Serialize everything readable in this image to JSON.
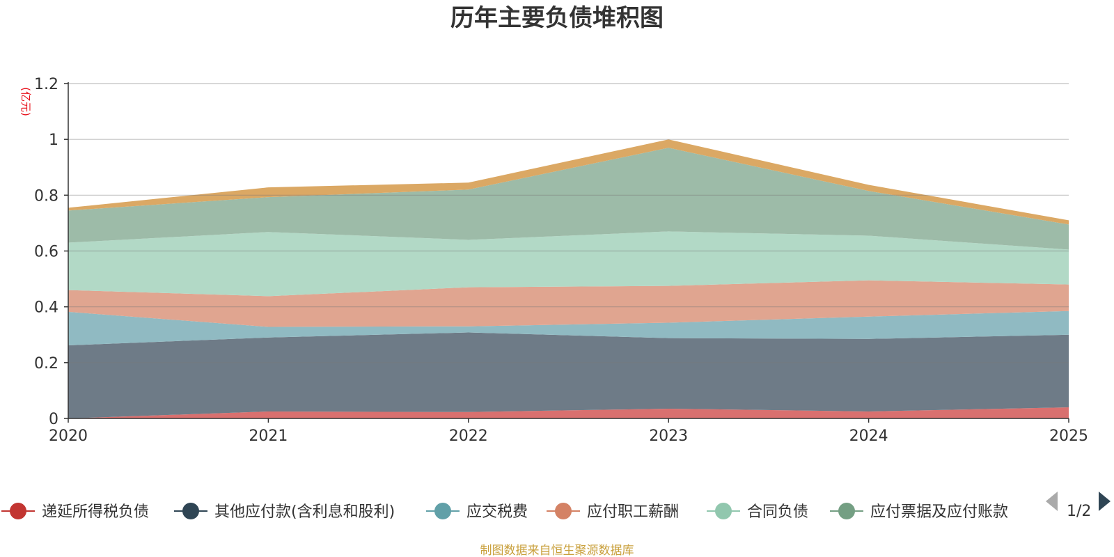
{
  "chart_data": {
    "type": "area",
    "stacked": true,
    "title": "历年主要负债堆积图",
    "ylabel": "(亿元)",
    "xlabel": "",
    "categories": [
      "2020",
      "2021",
      "2022",
      "2023",
      "2024",
      "2025"
    ],
    "ylim": [
      0,
      1.2
    ],
    "yticks": [
      "0",
      "0.2",
      "0.4",
      "0.6",
      "0.8",
      "1",
      "1.2"
    ],
    "ytick_values": [
      0,
      0.2,
      0.4,
      0.6,
      0.8,
      1.0,
      1.2
    ],
    "grid": true,
    "series": [
      {
        "name": "递延所得税负债",
        "color": "#d9706f",
        "marker": "#c23531",
        "values": [
          0.0,
          0.025,
          0.023,
          0.035,
          0.025,
          0.04
        ]
      },
      {
        "name": "其他应付款(含利息和股利)",
        "color": "#6e7b87",
        "marker": "#2f4554",
        "values": [
          0.262,
          0.265,
          0.285,
          0.253,
          0.26,
          0.26
        ]
      },
      {
        "name": "应交税费",
        "color": "#90bac2",
        "marker": "#61a0a8",
        "values": [
          0.12,
          0.038,
          0.022,
          0.055,
          0.08,
          0.085
        ]
      },
      {
        "name": "应付职工薪酬",
        "color": "#e0a590",
        "marker": "#d48265",
        "values": [
          0.078,
          0.11,
          0.14,
          0.132,
          0.13,
          0.095
        ]
      },
      {
        "name": "合同负债",
        "color": "#b2d9c6",
        "marker": "#91c7ae",
        "values": [
          0.17,
          0.23,
          0.17,
          0.195,
          0.16,
          0.125
        ]
      },
      {
        "name": "应付票据及应付账款",
        "color": "#9dbba8",
        "marker": "#749f83",
        "values": [
          0.115,
          0.125,
          0.18,
          0.3,
          0.16,
          0.09
        ]
      },
      {
        "name": "",
        "color": "#dba864",
        "marker": "#ca8622",
        "values": [
          0.01,
          0.035,
          0.025,
          0.03,
          0.022,
          0.015
        ]
      }
    ],
    "legend": {
      "position": "bottom",
      "items": [
        "递延所得税负债",
        "其他应付款(含利息和股利)",
        "应交税费",
        "应付职工薪酬",
        "合同负债",
        "应付票据及应付账款"
      ],
      "page_label": "1/2"
    },
    "source_note": "制图数据来自恒生聚源数据库"
  }
}
